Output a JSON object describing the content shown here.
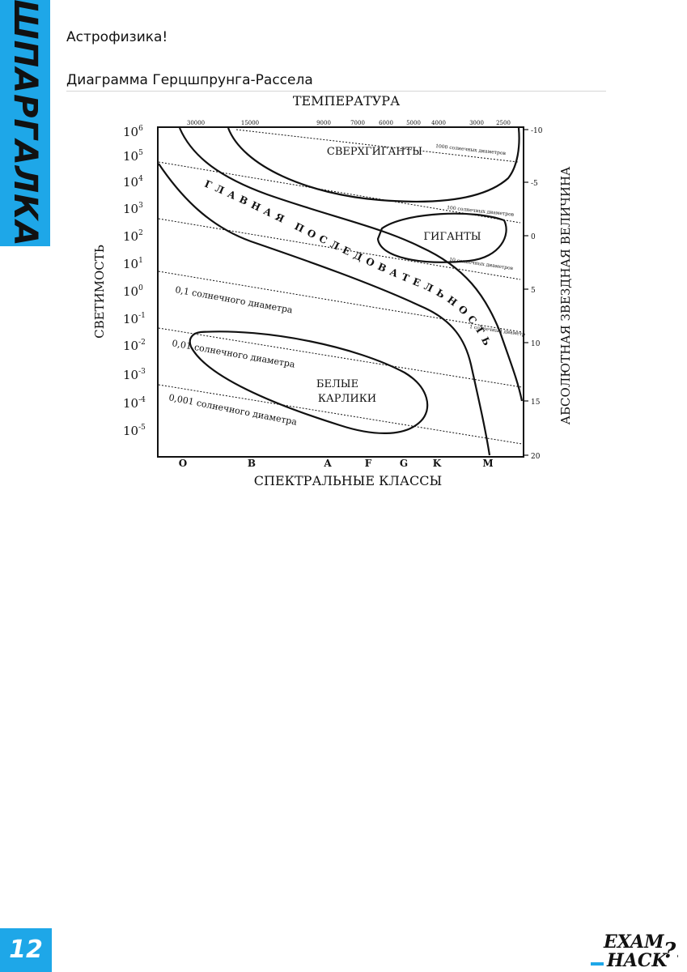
{
  "sidebar": {
    "label": "ШПАРГАЛКА"
  },
  "header": {
    "subject": "Астрофизика!",
    "title": "Диаграмма Герцшпрунга-Рассела"
  },
  "diagram": {
    "top_axis_title": "ТЕМПЕРАТУРА",
    "temperature_ticks": [
      "30000",
      "15000",
      "9000",
      "7000",
      "6000",
      "5000",
      "4000",
      "3000",
      "2500"
    ],
    "left_axis_title": "СВЕТИМОСТЬ",
    "luminosity_ticks": [
      {
        "base": "10",
        "exp": "6"
      },
      {
        "base": "10",
        "exp": "5"
      },
      {
        "base": "10",
        "exp": "4"
      },
      {
        "base": "10",
        "exp": "3"
      },
      {
        "base": "10",
        "exp": "2"
      },
      {
        "base": "10",
        "exp": "1"
      },
      {
        "base": "10",
        "exp": "0"
      },
      {
        "base": "10",
        "exp": "-1"
      },
      {
        "base": "10",
        "exp": "-2"
      },
      {
        "base": "10",
        "exp": "-3"
      },
      {
        "base": "10",
        "exp": "-4"
      },
      {
        "base": "10",
        "exp": "-5"
      }
    ],
    "right_axis_title": "АБСОЛЮТНАЯ ЗВЕЗДНАЯ ВЕЛИЧИНА",
    "magnitude_ticks": [
      "-10",
      "-5",
      "0",
      "5",
      "10",
      "15",
      "20"
    ],
    "bottom_axis_title": "СПЕКТРАЛЬНЫЕ КЛАССЫ",
    "spectral_classes": [
      "O",
      "B",
      "A",
      "F",
      "G",
      "K",
      "M"
    ],
    "regions": {
      "supergiants": "СВЕРХГИГАНТЫ",
      "giants": "ГИГАНТЫ",
      "main_sequence": "ГЛАВНАЯ ПОСЛЕДОВАТЕЛЬНОСТЬ",
      "white_dwarfs_line1": "БЕЛЫЕ",
      "white_dwarfs_line2": "КАРЛИКИ"
    },
    "diameter_labels": {
      "d1000": "1000 солнечных диаметров",
      "d100": "100 солнечных диаметров",
      "d10": "10 солнечных диаметров",
      "d1": "1 солнечный диаметр",
      "d01": "0,1 солнечного диаметра",
      "d001": "0,01 солнечного диаметра",
      "d0001": "0,001 солнечного диаметра"
    }
  },
  "footer": {
    "page_number": "12",
    "brand_line1": "EXAM",
    "brand_line2": "HACK",
    "brand_mark": "?!"
  },
  "colors": {
    "accent": "#1ea7e8",
    "text": "#111111"
  }
}
